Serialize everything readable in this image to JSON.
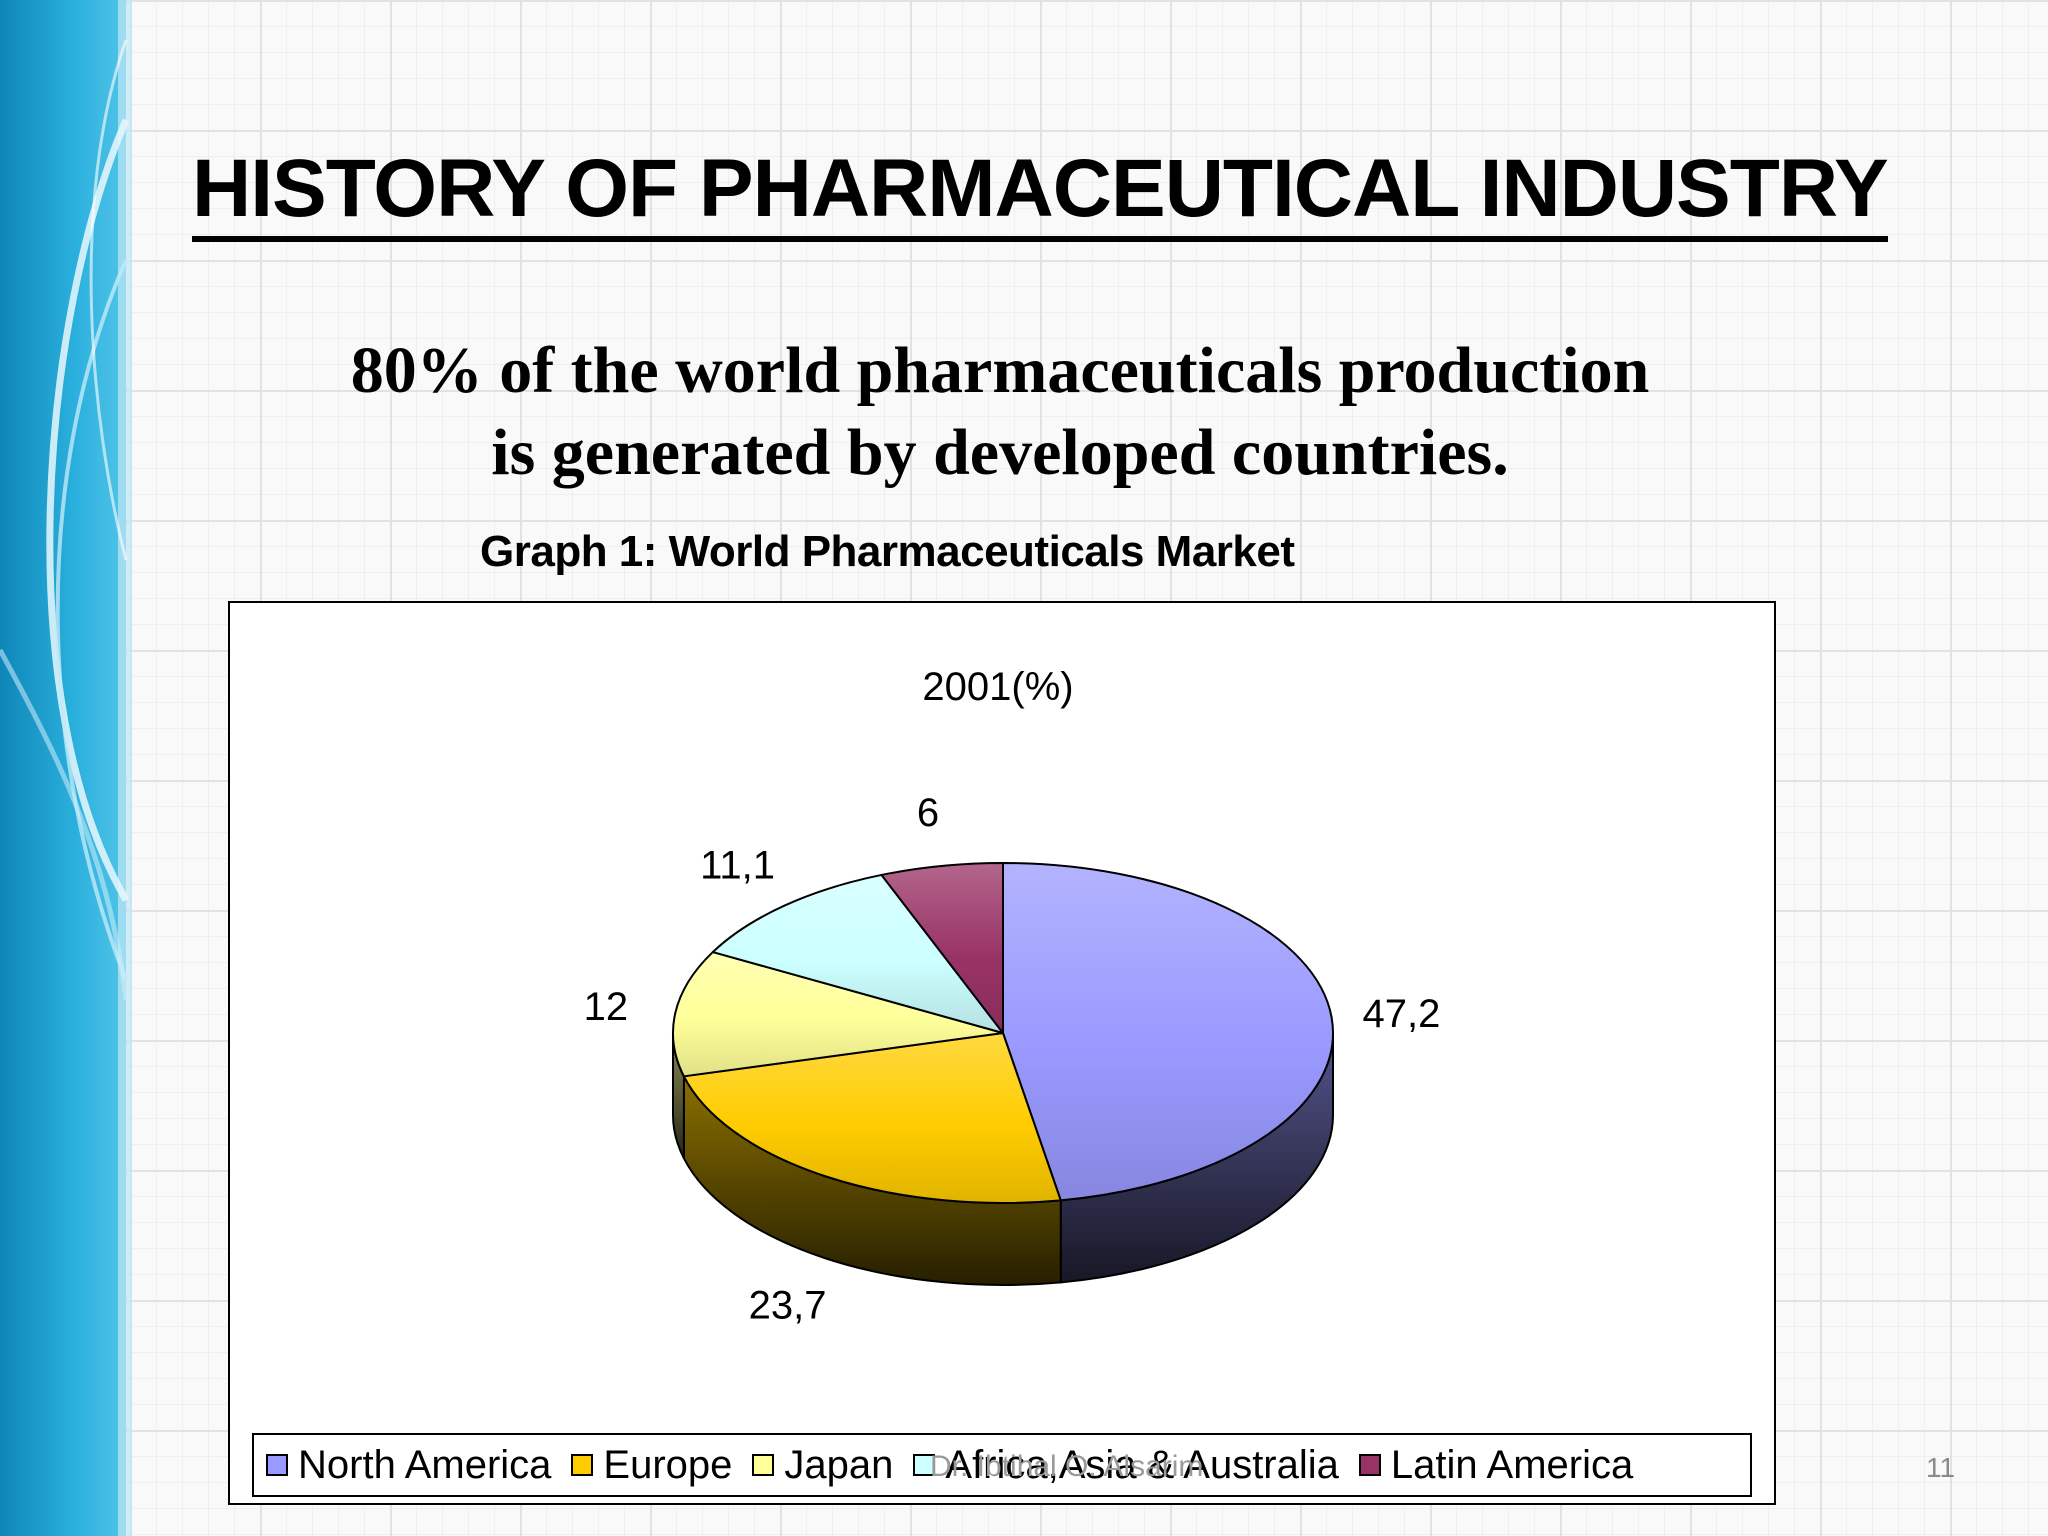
{
  "slide": {
    "title": "HISTORY OF PHARMACEUTICAL INDUSTRY",
    "subtitle_lines": [
      "80% of the world pharmaceuticals production",
      "is generated by developed countries."
    ],
    "graph_caption": "Graph 1: World Pharmaceuticals Market",
    "footer_author": "Dr. Ibtihal O. Alsarim",
    "page_number": "11"
  },
  "chart_data": {
    "type": "pie",
    "title": "2001(%)",
    "categories": [
      "North America",
      "Europe",
      "Japan",
      "Africa,Asia & Australia",
      "Latin America"
    ],
    "values": [
      47.2,
      23.7,
      12,
      11.1,
      6
    ],
    "value_labels": [
      "47,2",
      "23,7",
      "12",
      "11,1",
      "6"
    ],
    "colors": [
      "#9999ff",
      "#ffcc00",
      "#ffff99",
      "#ccffff",
      "#993366"
    ],
    "legend_position": "bottom",
    "three_d": true
  }
}
